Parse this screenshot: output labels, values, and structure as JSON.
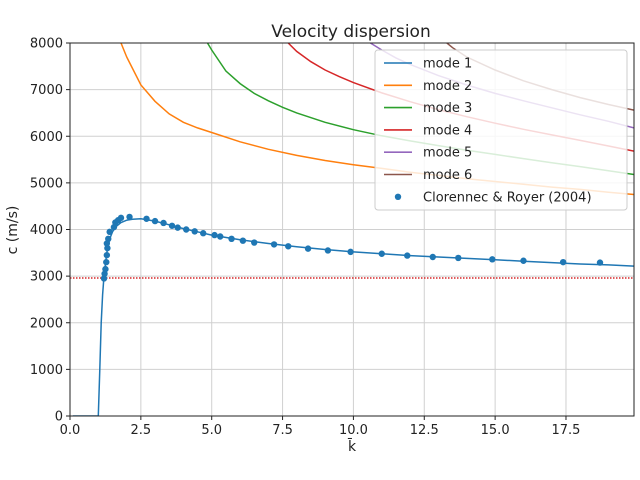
{
  "chart_data": {
    "type": "line",
    "title": "Velocity dispersion",
    "xlabel": "k̄",
    "ylabel": "c (m/s)",
    "xlim": [
      0,
      19.9
    ],
    "ylim": [
      0,
      8000
    ],
    "xticks": [
      0.0,
      2.5,
      5.0,
      7.5,
      10.0,
      12.5,
      15.0,
      17.5
    ],
    "xtick_labels": [
      "0.0",
      "2.5",
      "5.0",
      "7.5",
      "10.0",
      "12.5",
      "15.0",
      "17.5"
    ],
    "yticks": [
      0,
      1000,
      2000,
      3000,
      4000,
      5000,
      6000,
      7000,
      8000
    ],
    "ytick_labels": [
      "0",
      "1000",
      "2000",
      "3000",
      "4000",
      "5000",
      "6000",
      "7000",
      "8000"
    ],
    "grid": true,
    "legend_position": "top-right",
    "reference_line": {
      "y": 2960,
      "style": "dotted",
      "color": "#d62728"
    },
    "series": [
      {
        "name": "mode 1",
        "color": "#1f77b4",
        "x": [
          0.1,
          0.5,
          0.9,
          1.0,
          1.05,
          1.1,
          1.15,
          1.2,
          1.3,
          1.4,
          1.5,
          1.6,
          1.8,
          2.0,
          2.2,
          2.5,
          3.0,
          3.5,
          4.0,
          4.5,
          5.0,
          6.0,
          7.0,
          8.0,
          9.0,
          10.0,
          11.0,
          12.0,
          13.0,
          14.0,
          15.0,
          16.0,
          17.0,
          18.0,
          19.0,
          19.9
        ],
        "y": [
          0,
          0,
          0,
          0,
          1000,
          2000,
          2600,
          3000,
          3500,
          3800,
          3950,
          4050,
          4150,
          4200,
          4220,
          4230,
          4180,
          4100,
          4020,
          3950,
          3880,
          3780,
          3700,
          3630,
          3570,
          3520,
          3480,
          3440,
          3410,
          3380,
          3350,
          3320,
          3290,
          3260,
          3240,
          3215
        ]
      },
      {
        "name": "mode 2",
        "color": "#ff7f0e",
        "x": [
          1.8,
          2.0,
          2.5,
          3.0,
          3.5,
          4.0,
          4.5,
          5.0,
          6.0,
          7.0,
          8.0,
          9.0,
          10.0,
          11.0,
          12.0,
          13.0,
          14.0,
          15.0,
          16.0,
          17.0,
          18.0,
          19.0,
          19.9
        ],
        "y": [
          8000,
          7700,
          7100,
          6750,
          6480,
          6300,
          6180,
          6080,
          5880,
          5720,
          5590,
          5480,
          5390,
          5310,
          5230,
          5160,
          5090,
          5030,
          4970,
          4910,
          4860,
          4800,
          4750
        ]
      },
      {
        "name": "mode 3",
        "color": "#2ca02c",
        "x": [
          4.85,
          5.0,
          5.5,
          6.0,
          6.5,
          7.0,
          7.5,
          8.0,
          9.0,
          10.0,
          11.0,
          12.0,
          13.0,
          14.0,
          15.0,
          16.0,
          17.0,
          18.0,
          19.0,
          19.9
        ],
        "y": [
          8000,
          7850,
          7400,
          7130,
          6920,
          6760,
          6620,
          6500,
          6300,
          6140,
          6010,
          5900,
          5800,
          5700,
          5610,
          5520,
          5430,
          5350,
          5260,
          5180
        ]
      },
      {
        "name": "mode 4",
        "color": "#d62728",
        "x": [
          7.7,
          8.0,
          8.5,
          9.0,
          9.5,
          10.0,
          11.0,
          12.0,
          13.0,
          14.0,
          15.0,
          16.0,
          17.0,
          18.0,
          19.0,
          19.9
        ],
        "y": [
          8000,
          7820,
          7600,
          7420,
          7280,
          7150,
          6930,
          6740,
          6570,
          6420,
          6280,
          6150,
          6030,
          5910,
          5790,
          5680
        ]
      },
      {
        "name": "mode 5",
        "color": "#9467bd",
        "x": [
          10.6,
          11.0,
          11.5,
          12.0,
          13.0,
          14.0,
          15.0,
          16.0,
          17.0,
          18.0,
          19.0,
          19.9
        ],
        "y": [
          8000,
          7850,
          7680,
          7540,
          7300,
          7100,
          6920,
          6760,
          6610,
          6460,
          6320,
          6180
        ]
      },
      {
        "name": "mode 6",
        "color": "#8c564b",
        "x": [
          13.3,
          13.5,
          14.0,
          15.0,
          16.0,
          17.0,
          18.0,
          19.0,
          19.9
        ],
        "y": [
          8000,
          7900,
          7700,
          7420,
          7190,
          7000,
          6830,
          6680,
          6560
        ]
      }
    ],
    "scatter": {
      "name": "Clorennec & Royer (2004)",
      "color": "#1f77b4",
      "x": [
        1.2,
        1.22,
        1.25,
        1.28,
        1.3,
        1.32,
        1.35,
        1.3,
        1.4,
        1.55,
        1.6,
        1.7,
        1.8,
        2.1,
        2.7,
        3.0,
        3.3,
        3.6,
        3.8,
        4.1,
        4.4,
        4.7,
        5.1,
        5.3,
        5.7,
        6.1,
        6.5,
        7.2,
        7.7,
        8.4,
        9.1,
        9.9,
        11.0,
        11.9,
        12.8,
        13.7,
        14.9,
        16.0,
        17.4,
        18.7
      ],
      "y": [
        2950,
        3050,
        3150,
        3300,
        3450,
        3600,
        3800,
        3700,
        3950,
        4050,
        4150,
        4200,
        4250,
        4270,
        4230,
        4180,
        4140,
        4080,
        4040,
        4000,
        3960,
        3920,
        3880,
        3850,
        3800,
        3760,
        3720,
        3680,
        3640,
        3590,
        3550,
        3520,
        3480,
        3440,
        3410,
        3390,
        3360,
        3330,
        3300,
        3290
      ]
    }
  }
}
